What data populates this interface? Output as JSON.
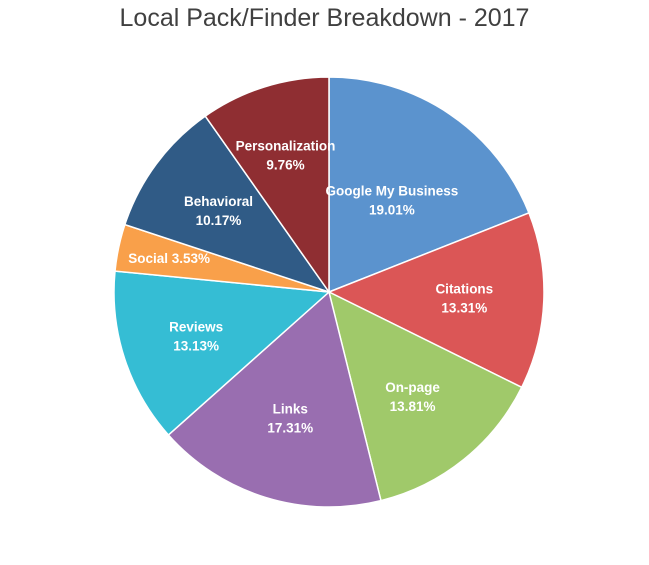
{
  "chart_data": {
    "type": "pie",
    "title": "Local Pack/Finder Breakdown - 2017",
    "slices": [
      {
        "name": "Google My Business",
        "value": 19.01,
        "label": "19.01%",
        "color": "#5B93CE"
      },
      {
        "name": "Citations",
        "value": 13.31,
        "label": "13.31%",
        "color": "#DB5656"
      },
      {
        "name": "On-page",
        "value": 13.81,
        "label": "13.81%",
        "color": "#A0C96A"
      },
      {
        "name": "Links",
        "value": 17.31,
        "label": "17.31%",
        "color": "#996EB0"
      },
      {
        "name": "Reviews",
        "value": 13.13,
        "label": "13.13%",
        "color": "#35BDD4"
      },
      {
        "name": "Social",
        "value": 3.53,
        "label": "3.53%",
        "color": "#F9A04A"
      },
      {
        "name": "Behavioral",
        "value": 10.17,
        "label": "10.17%",
        "color": "#305B86"
      },
      {
        "name": "Personalization",
        "value": 9.76,
        "label": "9.76%",
        "color": "#8F2E32"
      }
    ]
  }
}
